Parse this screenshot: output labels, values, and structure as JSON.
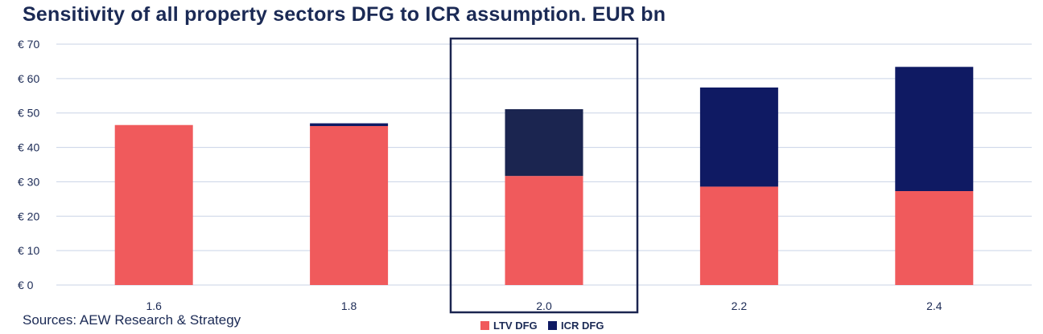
{
  "title": "Sensitivity of all property sectors DFG to ICR assumption. EUR bn",
  "source": "Sources: AEW Research & Strategy",
  "chart_data": {
    "type": "bar",
    "stacked": true,
    "title": "Sensitivity of all property sectors DFG to ICR assumption. EUR bn",
    "xlabel": "",
    "ylabel": "",
    "categories": [
      "1.6",
      "1.8",
      "2.0",
      "2.2",
      "2.4"
    ],
    "series": [
      {
        "name": "LTV DFG",
        "color": "#f05a5c",
        "values": [
          46.5,
          46.2,
          31.7,
          28.6,
          27.3
        ]
      },
      {
        "name": "ICR DFG",
        "color": "#0f1a63",
        "values": [
          0,
          0.8,
          19.4,
          28.8,
          36.1
        ]
      }
    ],
    "ylim": [
      0,
      70
    ],
    "yticks": [
      0,
      10,
      20,
      30,
      40,
      50,
      60,
      70
    ],
    "ytick_labels": [
      "€ 0",
      "€ 10",
      "€ 20",
      "€ 30",
      "€ 40",
      "€ 50",
      "€ 60",
      "€ 70"
    ],
    "highlighted_category": "2.0",
    "highlight_color": "#1b2550",
    "grid": true,
    "legend_position": "bottom"
  }
}
